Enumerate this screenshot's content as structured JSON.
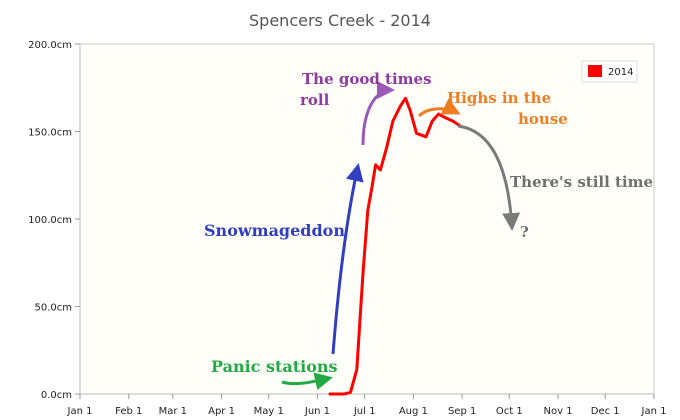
{
  "chart_data": {
    "type": "line",
    "title": "Spencers Creek - 2014",
    "xlabel": "",
    "ylabel": "",
    "x_tick_labels": [
      "Jan 1",
      "Feb 1",
      "Mar 1",
      "Apr 1",
      "May 1",
      "Jun 1",
      "Jul 1",
      "Aug 1",
      "Sep 1",
      "Oct 1",
      "Nov 1",
      "Dec 1",
      "Jan 1"
    ],
    "y_tick_labels": [
      "0.0cm",
      "50.0cm",
      "100.0cm",
      "150.0cm",
      "200.0cm"
    ],
    "ylim": [
      0,
      200
    ],
    "xlim": [
      "2014-01-01",
      "2015-01-01"
    ],
    "grid": false,
    "legend_position": "top-right",
    "series": [
      {
        "name": "2014",
        "color": "#ff0000",
        "points": [
          [
            "2014-06-09",
            0
          ],
          [
            "2014-06-18",
            0
          ],
          [
            "2014-06-22",
            1
          ],
          [
            "2014-06-26",
            14
          ],
          [
            "2014-06-30",
            70
          ],
          [
            "2014-07-03",
            105
          ],
          [
            "2014-07-06",
            120
          ],
          [
            "2014-07-08",
            131
          ],
          [
            "2014-07-11",
            128
          ],
          [
            "2014-07-15",
            141
          ],
          [
            "2014-07-19",
            156
          ],
          [
            "2014-07-24",
            165
          ],
          [
            "2014-07-27",
            169
          ],
          [
            "2014-07-30",
            162
          ],
          [
            "2014-08-03",
            149
          ],
          [
            "2014-08-09",
            147
          ],
          [
            "2014-08-13",
            156
          ],
          [
            "2014-08-17",
            160
          ],
          [
            "2014-08-21",
            158
          ],
          [
            "2014-08-26",
            156
          ],
          [
            "2014-08-31",
            153
          ]
        ]
      }
    ],
    "annotations": [
      {
        "text": "Panic stations",
        "color": "#22aa44",
        "arrow_color": "#22aa44"
      },
      {
        "text": "Snowmageddon",
        "color": "#2f3fbf",
        "arrow_color": "#2f3fbf"
      },
      {
        "text": "The good times",
        "text2": "roll",
        "color": "#8e3a9e",
        "arrow_color": "#9b59b6"
      },
      {
        "text": "Highs in the",
        "text2": "house",
        "color": "#ef7d22",
        "arrow_color": "#ef7d22"
      },
      {
        "text": "There's still time",
        "color": "#6f6f6f",
        "arrow_color": "#7a7a7a"
      },
      {
        "text": "?",
        "color": "#6f6f6f"
      }
    ]
  }
}
